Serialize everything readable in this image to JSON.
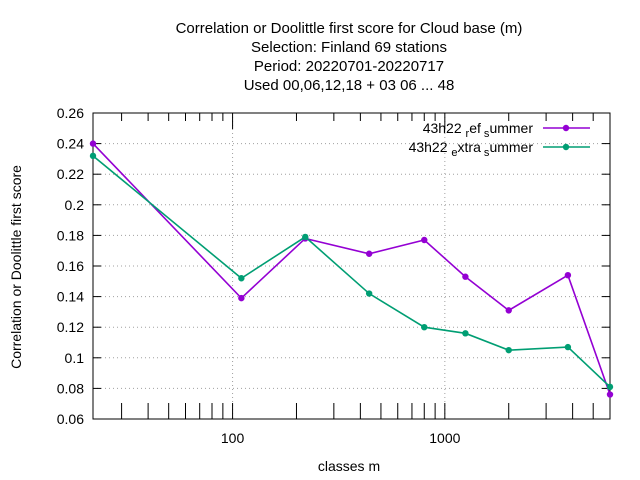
{
  "chart_data": {
    "type": "line",
    "title_lines": [
      "Correlation or Doolittle first score  for Cloud base (m)",
      "Selection: Finland     69 stations",
      "Period: 20220701-20220717",
      "Used  00,06,12,18  + 03 06 ... 48"
    ],
    "xlabel": "classes m",
    "ylabel": "Correlation or Doolittle first score",
    "xscale": "log",
    "xlim": [
      22,
      6000
    ],
    "ylim": [
      0.06,
      0.26
    ],
    "x_tick_labels": [
      "100",
      "1000"
    ],
    "x_tick_values": [
      100,
      1000
    ],
    "y_tick_labels": [
      "0.06",
      "0.08",
      "0.1",
      "0.12",
      "0.14",
      "0.16",
      "0.18",
      "0.2",
      "0.22",
      "0.24",
      "0.26"
    ],
    "y_tick_values": [
      0.06,
      0.08,
      0.1,
      0.12,
      0.14,
      0.16,
      0.18,
      0.2,
      0.22,
      0.24,
      0.26
    ],
    "grid": true,
    "legend_position": "top-right",
    "series": [
      {
        "name": "43h22_ref_summer",
        "legend_parts": {
          "a": "43h22",
          "sub1": "r",
          "b": "ef",
          "sub2": "s",
          "c": "ummer"
        },
        "color": "#9400d3",
        "x": [
          22,
          110,
          220,
          440,
          800,
          1250,
          2000,
          3800,
          6000
        ],
        "y": [
          0.24,
          0.139,
          0.178,
          0.168,
          0.177,
          0.153,
          0.131,
          0.154,
          0.076
        ]
      },
      {
        "name": "43h22_extra_summer",
        "legend_parts": {
          "a": "43h22",
          "sub1": "e",
          "b": "xtra",
          "sub2": "s",
          "c": "ummer"
        },
        "color": "#009e73",
        "x": [
          22,
          110,
          220,
          440,
          800,
          1250,
          2000,
          3800,
          6000
        ],
        "y": [
          0.232,
          0.152,
          0.179,
          0.142,
          0.12,
          0.116,
          0.105,
          0.107,
          0.081
        ]
      }
    ]
  }
}
